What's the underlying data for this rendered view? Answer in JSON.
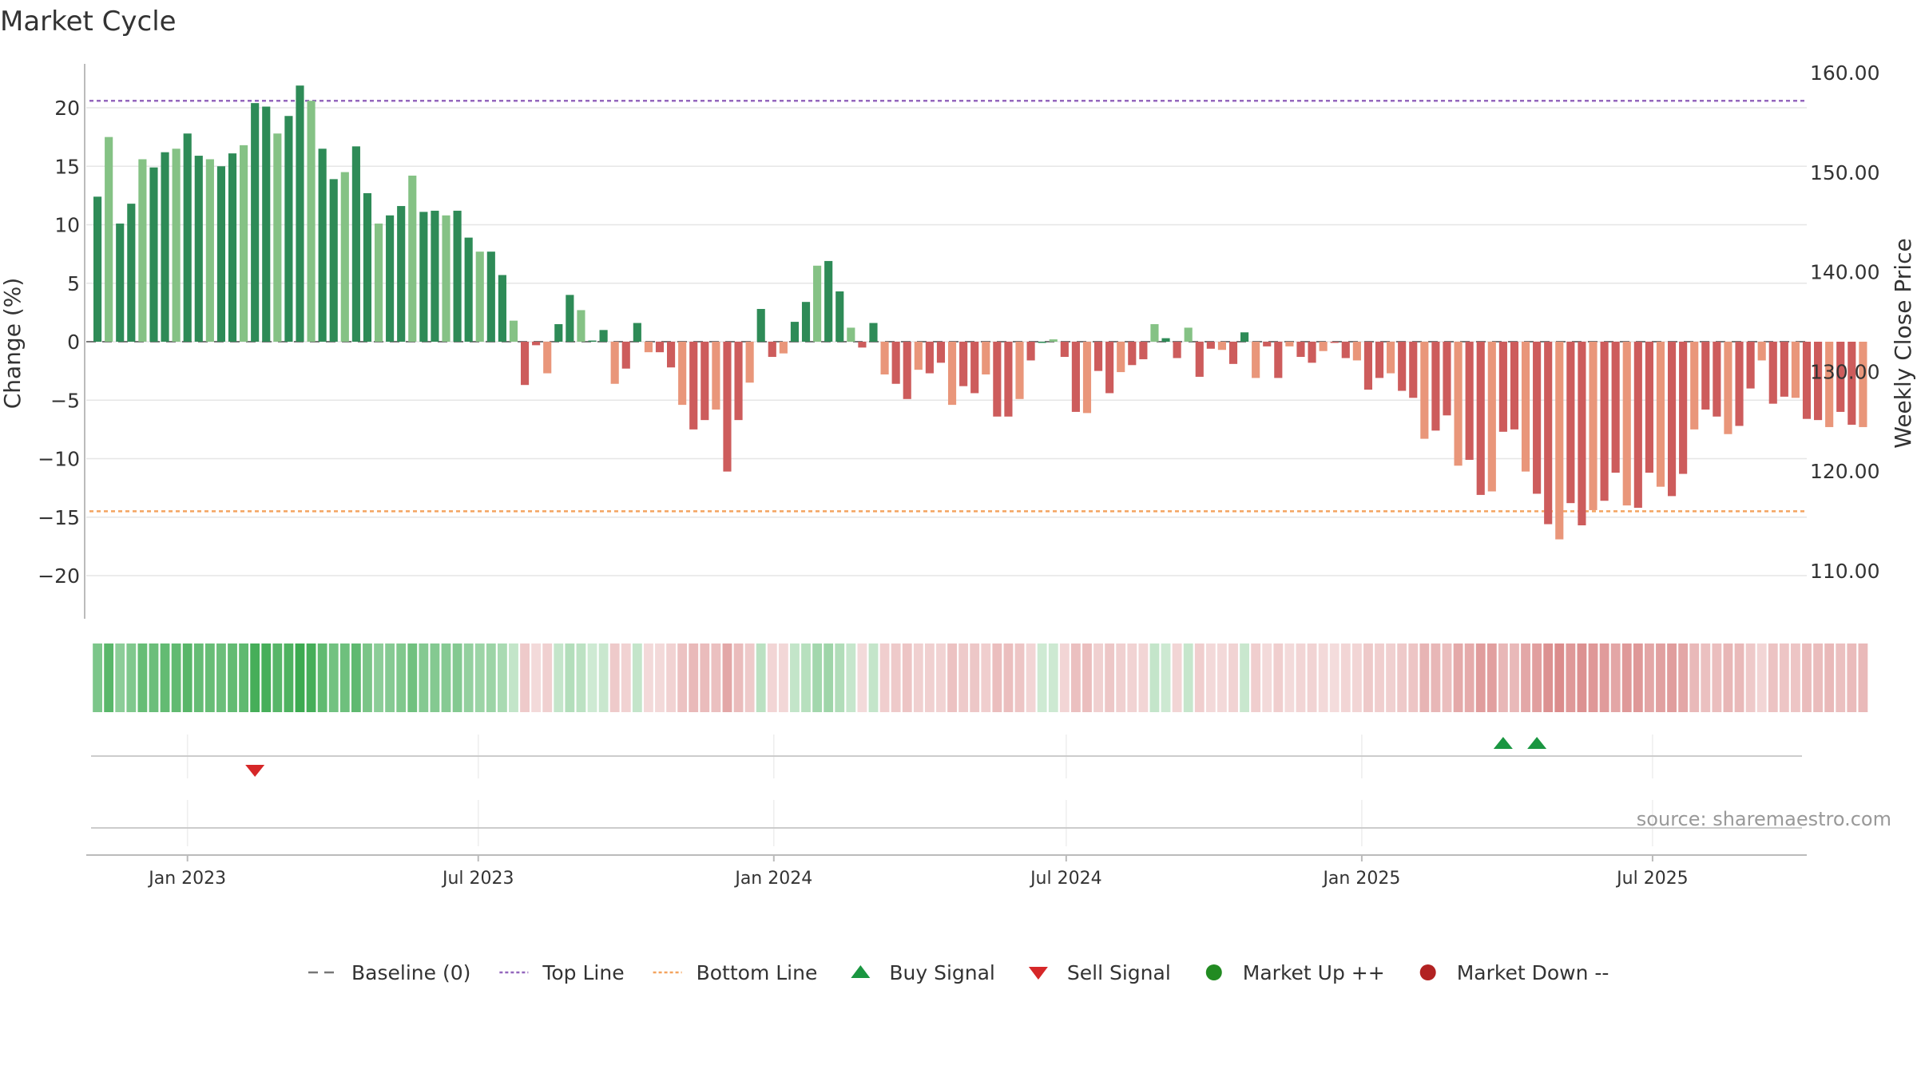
{
  "chart_data": {
    "type": "bar",
    "title": "Market Cycle",
    "ylabel_left": "Change (%)",
    "ylabel_right": "Weekly Close Price",
    "source": "source: sharemaestro.com",
    "y_left_range": [
      -24,
      24
    ],
    "y_left_ticks": [
      20,
      15,
      10,
      5,
      0,
      -5,
      -10,
      -15,
      -20
    ],
    "y_left_tick_labels": [
      "20",
      "15",
      "10",
      "5",
      "0",
      "−5",
      "−10",
      "−15",
      "−20"
    ],
    "y_right_ticks": [
      160,
      150,
      140,
      130,
      120,
      110
    ],
    "y_right_tick_labels": [
      "160.00",
      "150.00",
      "140.00",
      "130.00",
      "120.00",
      "110.00"
    ],
    "top_line": 20.6,
    "bottom_line": -14.5,
    "baseline": 0,
    "x_range": [
      "2022-10-30",
      "2025-10-05"
    ],
    "x_ticks": [
      "2023-01-01",
      "2023-07-01",
      "2024-01-01",
      "2024-07-01",
      "2025-01-01",
      "2025-07-01"
    ],
    "x_tick_labels": [
      "Jan 2023",
      "Jul 2023",
      "Jan 2024",
      "Jul 2024",
      "Jan 2025",
      "Jul 2025"
    ],
    "start_week": "2022-11-06",
    "values": [
      12.4,
      17.5,
      10.1,
      11.8,
      15.6,
      14.9,
      16.2,
      16.5,
      17.8,
      15.9,
      15.6,
      15.0,
      16.1,
      16.8,
      20.4,
      20.1,
      17.8,
      19.3,
      21.9,
      20.6,
      16.5,
      13.9,
      14.5,
      16.7,
      12.7,
      10.1,
      10.8,
      11.6,
      14.2,
      11.1,
      11.2,
      10.8,
      11.2,
      8.9,
      7.7,
      7.7,
      5.7,
      1.8,
      -3.7,
      -0.3,
      -2.7,
      1.5,
      4.0,
      2.7,
      0.1,
      1.0,
      -3.6,
      -2.3,
      1.6,
      -0.9,
      -0.9,
      -2.2,
      -5.4,
      -7.5,
      -6.7,
      -5.8,
      -11.1,
      -6.7,
      -3.5,
      2.8,
      -1.3,
      -1.0,
      1.7,
      3.4,
      6.5,
      6.9,
      4.3,
      1.2,
      -0.5,
      1.6,
      -2.8,
      -3.6,
      -4.9,
      -2.4,
      -2.7,
      -1.8,
      -5.4,
      -3.8,
      -4.4,
      -2.8,
      -6.4,
      -6.4,
      -4.9,
      -1.6,
      0.0,
      0.2,
      -1.3,
      -6.0,
      -6.1,
      -2.5,
      -4.4,
      -2.6,
      -2.0,
      -1.5,
      1.5,
      0.3,
      -1.4,
      1.2,
      -3.0,
      -0.6,
      -0.7,
      -1.9,
      0.8,
      -3.1,
      -0.4,
      -3.1,
      -0.4,
      -1.3,
      -1.8,
      -0.8,
      -0.1,
      -1.4,
      -1.6,
      -4.1,
      -3.1,
      -2.7,
      -4.2,
      -4.8,
      -8.3,
      -7.6,
      -6.3,
      -10.6,
      -10.1,
      -13.1,
      -12.8,
      -7.7,
      -7.5,
      -11.1,
      -13.0,
      -15.6,
      -16.9,
      -13.8,
      -15.7,
      -14.4,
      -13.6,
      -11.2,
      -14.0,
      -14.2,
      -11.2,
      -12.4,
      -13.2,
      -11.3,
      -7.5,
      -5.8,
      -6.4,
      -7.9,
      -7.2,
      -4.0,
      -1.6,
      -5.3,
      -4.7,
      -4.8,
      -6.6,
      -6.7,
      -7.3,
      -6.0,
      -7.1,
      -7.3
    ],
    "buy_signals": [
      "2025-03-30",
      "2025-04-20"
    ],
    "sell_signals": [
      "2023-02-12"
    ],
    "legend": [
      {
        "label": "Baseline (0)",
        "marker": "dash-line",
        "color": "#777777"
      },
      {
        "label": "Top Line",
        "marker": "dotted-line",
        "color": "#9467bd"
      },
      {
        "label": "Bottom Line",
        "marker": "dotted-line",
        "color": "#f4a460"
      },
      {
        "label": "Buy Signal",
        "marker": "triangle-up",
        "color": "#1a9641"
      },
      {
        "label": "Sell Signal",
        "marker": "triangle-down",
        "color": "#d62728"
      },
      {
        "label": "Market Up ++",
        "marker": "circle",
        "color": "#228b22"
      },
      {
        "label": "Market Down --",
        "marker": "circle",
        "color": "#b22222"
      }
    ],
    "colors": {
      "up_strong": "#2e8b57",
      "up_light": "#85c285",
      "down_strong": "#cd5c5c",
      "down_light": "#e9967a",
      "top_line": "#9467bd",
      "bottom_line": "#f4a460",
      "buy": "#1a9641",
      "sell": "#d62728",
      "grid": "#e6e6e6",
      "axis": "#bbbbbb",
      "text": "#333333",
      "source": "#999999"
    },
    "grid": true,
    "legend_position": "bottom-center"
  }
}
